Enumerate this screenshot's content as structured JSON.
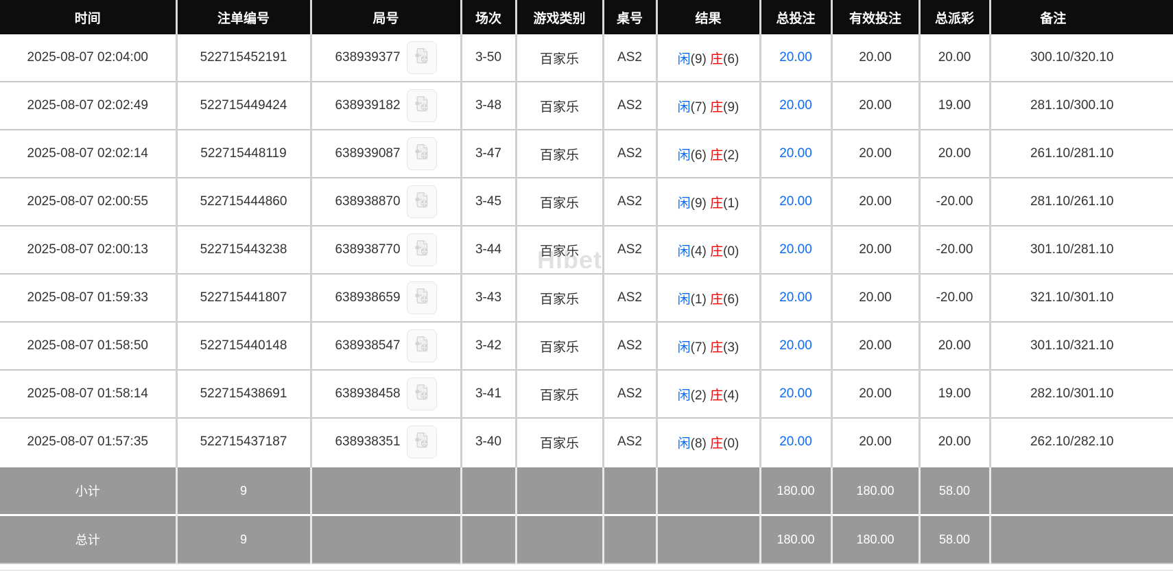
{
  "watermark": "Hibet",
  "colors": {
    "header_bg": "#0d0d0d",
    "accent_blue": "#0d6bf2",
    "accent_red": "#f40000",
    "footer_bg": "#999999"
  },
  "icons": {
    "video_replay": "video-replay-icon"
  },
  "table": {
    "header": [
      "时间",
      "注单编号",
      "局号",
      "场次",
      "游戏类别",
      "桌号",
      "结果",
      "总投注",
      "有效投注",
      "总派彩",
      "备注"
    ],
    "rows": [
      {
        "time": "2025-08-07 02:04:00",
        "order_no": "522715452191",
        "round_no": "638939377",
        "session": "3-50",
        "game": "百家乐",
        "table_no": "AS2",
        "result": {
          "player_label": "闲",
          "player_score": "(9)",
          "banker_label": "庄",
          "banker_score": "(6)"
        },
        "total_bet": "20.00",
        "valid_bet": "20.00",
        "payout": "20.00",
        "payout_negative": false,
        "remark": "300.10/320.10"
      },
      {
        "time": "2025-08-07 02:02:49",
        "order_no": "522715449424",
        "round_no": "638939182",
        "session": "3-48",
        "game": "百家乐",
        "table_no": "AS2",
        "result": {
          "player_label": "闲",
          "player_score": "(7)",
          "banker_label": "庄",
          "banker_score": "(9)"
        },
        "total_bet": "20.00",
        "valid_bet": "20.00",
        "payout": "19.00",
        "payout_negative": false,
        "remark": "281.10/300.10"
      },
      {
        "time": "2025-08-07 02:02:14",
        "order_no": "522715448119",
        "round_no": "638939087",
        "session": "3-47",
        "game": "百家乐",
        "table_no": "AS2",
        "result": {
          "player_label": "闲",
          "player_score": "(6)",
          "banker_label": "庄",
          "banker_score": "(2)"
        },
        "total_bet": "20.00",
        "valid_bet": "20.00",
        "payout": "20.00",
        "payout_negative": false,
        "remark": "261.10/281.10"
      },
      {
        "time": "2025-08-07 02:00:55",
        "order_no": "522715444860",
        "round_no": "638938870",
        "session": "3-45",
        "game": "百家乐",
        "table_no": "AS2",
        "result": {
          "player_label": "闲",
          "player_score": "(9)",
          "banker_label": "庄",
          "banker_score": "(1)"
        },
        "total_bet": "20.00",
        "valid_bet": "20.00",
        "payout": "-20.00",
        "payout_negative": true,
        "remark": "281.10/261.10"
      },
      {
        "time": "2025-08-07 02:00:13",
        "order_no": "522715443238",
        "round_no": "638938770",
        "session": "3-44",
        "game": "百家乐",
        "table_no": "AS2",
        "result": {
          "player_label": "闲",
          "player_score": "(4)",
          "banker_label": "庄",
          "banker_score": "(0)"
        },
        "total_bet": "20.00",
        "valid_bet": "20.00",
        "payout": "-20.00",
        "payout_negative": true,
        "remark": "301.10/281.10"
      },
      {
        "time": "2025-08-07 01:59:33",
        "order_no": "522715441807",
        "round_no": "638938659",
        "session": "3-43",
        "game": "百家乐",
        "table_no": "AS2",
        "result": {
          "player_label": "闲",
          "player_score": "(1)",
          "banker_label": "庄",
          "banker_score": "(6)"
        },
        "total_bet": "20.00",
        "valid_bet": "20.00",
        "payout": "-20.00",
        "payout_negative": true,
        "remark": "321.10/301.10"
      },
      {
        "time": "2025-08-07 01:58:50",
        "order_no": "522715440148",
        "round_no": "638938547",
        "session": "3-42",
        "game": "百家乐",
        "table_no": "AS2",
        "result": {
          "player_label": "闲",
          "player_score": "(7)",
          "banker_label": "庄",
          "banker_score": "(3)"
        },
        "total_bet": "20.00",
        "valid_bet": "20.00",
        "payout": "20.00",
        "payout_negative": false,
        "remark": "301.10/321.10"
      },
      {
        "time": "2025-08-07 01:58:14",
        "order_no": "522715438691",
        "round_no": "638938458",
        "session": "3-41",
        "game": "百家乐",
        "table_no": "AS2",
        "result": {
          "player_label": "闲",
          "player_score": "(2)",
          "banker_label": "庄",
          "banker_score": "(4)"
        },
        "total_bet": "20.00",
        "valid_bet": "20.00",
        "payout": "19.00",
        "payout_negative": false,
        "remark": "282.10/301.10"
      },
      {
        "time": "2025-08-07 01:57:35",
        "order_no": "522715437187",
        "round_no": "638938351",
        "session": "3-40",
        "game": "百家乐",
        "table_no": "AS2",
        "result": {
          "player_label": "闲",
          "player_score": "(8)",
          "banker_label": "庄",
          "banker_score": "(0)"
        },
        "total_bet": "20.00",
        "valid_bet": "20.00",
        "payout": "20.00",
        "payout_negative": false,
        "remark": "262.10/282.10"
      }
    ],
    "subtotal": {
      "label": "小计",
      "count": "9",
      "total_bet": "180.00",
      "valid_bet": "180.00",
      "payout": "58.00"
    },
    "total": {
      "label": "总计",
      "count": "9",
      "total_bet": "180.00",
      "valid_bet": "180.00",
      "payout": "58.00"
    }
  }
}
